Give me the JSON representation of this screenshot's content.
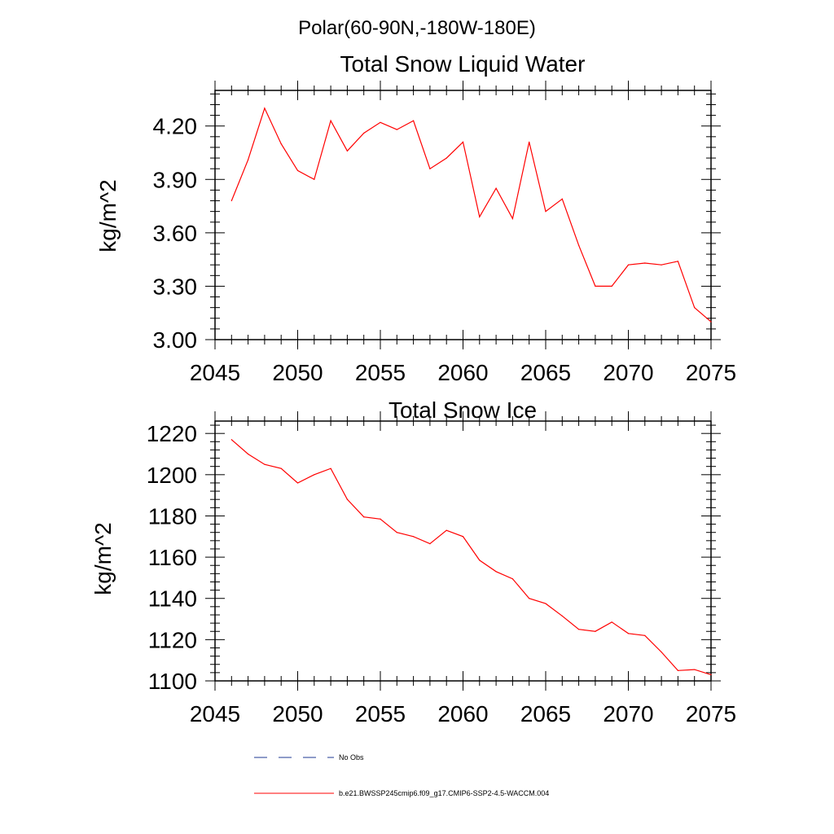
{
  "figure": {
    "suptitle": "Polar(60-90N,-180W-180E)"
  },
  "chart_data": [
    {
      "type": "line",
      "title": "Total Snow Liquid Water",
      "ylabel": "kg/m^2",
      "xlabel": "",
      "xlim": [
        2045,
        2075
      ],
      "ylim": [
        3.0,
        4.4
      ],
      "xticks": [
        "2045",
        "2050",
        "2055",
        "2060",
        "2065",
        "2070",
        "2075"
      ],
      "yticks": [
        "3.00",
        "3.30",
        "3.60",
        "3.90",
        "4.20"
      ],
      "series": [
        {
          "color": "#ff0000",
          "x": [
            2046,
            2047,
            2048,
            2049,
            2050,
            2051,
            2052,
            2053,
            2054,
            2055,
            2056,
            2057,
            2058,
            2059,
            2060,
            2061,
            2062,
            2063,
            2064,
            2065,
            2066,
            2067,
            2068,
            2069,
            2070,
            2071,
            2072,
            2073,
            2074,
            2075
          ],
          "values": [
            3.78,
            4.01,
            4.3,
            4.1,
            3.95,
            3.9,
            4.23,
            4.06,
            4.16,
            4.22,
            4.18,
            4.23,
            3.96,
            4.02,
            4.11,
            3.69,
            3.85,
            3.68,
            4.11,
            3.72,
            3.79,
            3.53,
            3.3,
            3.3,
            3.42,
            3.43,
            3.42,
            3.44,
            3.18,
            3.1
          ]
        }
      ]
    },
    {
      "type": "line",
      "title": "Total Snow Ice",
      "ylabel": "kg/m^2",
      "xlabel": "",
      "xlim": [
        2045,
        2075
      ],
      "ylim": [
        1100,
        1226
      ],
      "xticks": [
        "2045",
        "2050",
        "2055",
        "2060",
        "2065",
        "2070",
        "2075"
      ],
      "yticks": [
        "1100",
        "1120",
        "1140",
        "1160",
        "1180",
        "1200",
        "1220"
      ],
      "series": [
        {
          "color": "#ff0000",
          "x": [
            2046,
            2047,
            2048,
            2049,
            2050,
            2051,
            2052,
            2053,
            2054,
            2055,
            2056,
            2057,
            2058,
            2059,
            2060,
            2061,
            2062,
            2063,
            2064,
            2065,
            2066,
            2067,
            2068,
            2069,
            2070,
            2071,
            2072,
            2073,
            2074,
            2075
          ],
          "values": [
            1217,
            1210,
            1205,
            1203,
            1196,
            1200,
            1203,
            1188,
            1179.5,
            1178.5,
            1172,
            1170,
            1166.5,
            1173,
            1170,
            1158.5,
            1153,
            1149.5,
            1140,
            1137.5,
            1131.5,
            1125,
            1124,
            1128.5,
            1123,
            1122,
            1114,
            1105,
            1105.5,
            1103
          ]
        }
      ]
    }
  ],
  "legend": [
    {
      "label": "No Obs",
      "style": "dashed",
      "color": "#1f3a93"
    },
    {
      "label": "b.e21.BWSSP245cmip6.f09_g17.CMIP6-SSP2-4.5-WACCM.004",
      "style": "solid",
      "color": "#ff0000"
    }
  ]
}
